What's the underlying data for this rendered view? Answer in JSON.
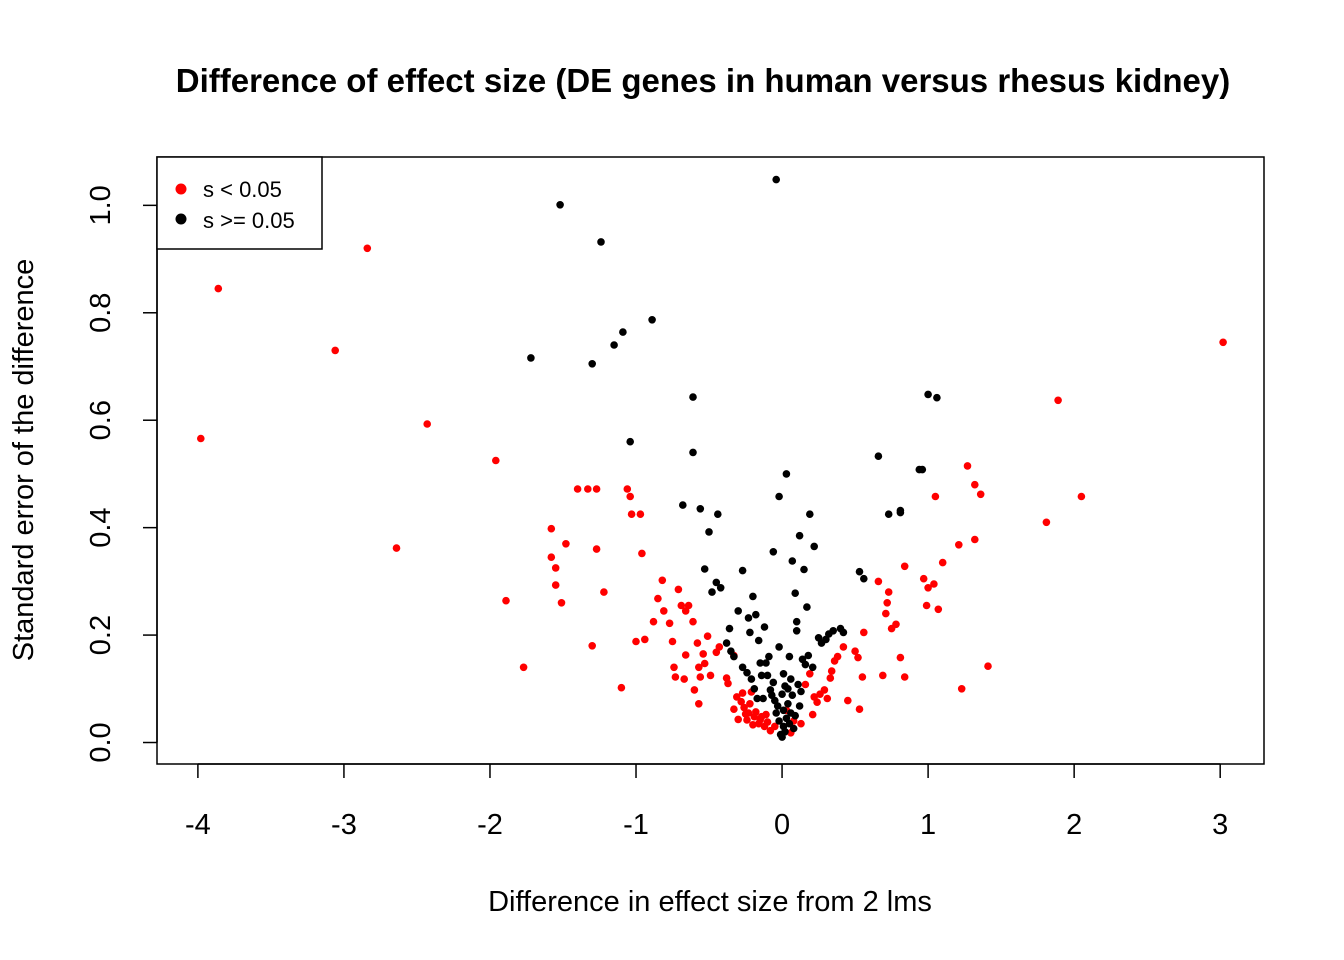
{
  "chart_data": {
    "type": "scatter",
    "title": "Difference of effect size (DE genes in human versus rhesus kidney)",
    "xlabel": "Difference in effect size from 2 lms",
    "ylabel": "Standard error of the difference",
    "xlim": [
      -4.28,
      3.3
    ],
    "ylim": [
      -0.04,
      1.09
    ],
    "x_ticks": [
      -4,
      -3,
      -2,
      -1,
      0,
      1,
      2,
      3
    ],
    "x_tick_labels": [
      "-4",
      "-3",
      "-2",
      "-1",
      "0",
      "1",
      "2",
      "3"
    ],
    "y_ticks": [
      0.0,
      0.2,
      0.4,
      0.6,
      0.8,
      1.0
    ],
    "y_tick_labels": [
      "0.0",
      "0.2",
      "0.4",
      "0.6",
      "0.8",
      "1.0"
    ],
    "grid": false,
    "legend": {
      "position": "top-left",
      "entries": [
        {
          "label": "s < 0.05",
          "color": "#ff0000"
        },
        {
          "label": "s >= 0.05",
          "color": "#000000"
        }
      ]
    },
    "series": [
      {
        "name": "s < 0.05",
        "color": "#ff0000",
        "points": [
          [
            -3.98,
            0.566
          ],
          [
            -3.86,
            0.845
          ],
          [
            -3.06,
            0.73
          ],
          [
            -2.84,
            0.92
          ],
          [
            -2.64,
            0.362
          ],
          [
            -2.43,
            0.593
          ],
          [
            -1.96,
            0.525
          ],
          [
            -1.89,
            0.264
          ],
          [
            -1.77,
            0.14
          ],
          [
            -1.58,
            0.398
          ],
          [
            -1.58,
            0.345
          ],
          [
            -1.55,
            0.325
          ],
          [
            -1.55,
            0.293
          ],
          [
            -1.51,
            0.26
          ],
          [
            -1.48,
            0.37
          ],
          [
            -1.4,
            0.472
          ],
          [
            -1.33,
            0.472
          ],
          [
            -1.3,
            0.18
          ],
          [
            -1.27,
            0.472
          ],
          [
            -1.27,
            0.36
          ],
          [
            -1.22,
            0.28
          ],
          [
            -1.1,
            0.102
          ],
          [
            -1.06,
            0.472
          ],
          [
            -1.04,
            0.458
          ],
          [
            -1.03,
            0.425
          ],
          [
            -1.0,
            0.188
          ],
          [
            -0.97,
            0.425
          ],
          [
            -0.96,
            0.352
          ],
          [
            -0.94,
            0.192
          ],
          [
            -0.88,
            0.225
          ],
          [
            -0.85,
            0.268
          ],
          [
            -0.82,
            0.302
          ],
          [
            -0.81,
            0.245
          ],
          [
            -0.77,
            0.222
          ],
          [
            -0.75,
            0.188
          ],
          [
            -0.74,
            0.14
          ],
          [
            -0.73,
            0.122
          ],
          [
            -0.71,
            0.285
          ],
          [
            -0.69,
            0.255
          ],
          [
            -0.67,
            0.118
          ],
          [
            -0.66,
            0.163
          ],
          [
            -0.66,
            0.245
          ],
          [
            -0.64,
            0.255
          ],
          [
            -0.61,
            0.225
          ],
          [
            -0.6,
            0.098
          ],
          [
            -0.58,
            0.185
          ],
          [
            -0.57,
            0.14
          ],
          [
            -0.57,
            0.072
          ],
          [
            -0.56,
            0.122
          ],
          [
            -0.54,
            0.165
          ],
          [
            -0.53,
            0.147
          ],
          [
            -0.51,
            0.198
          ],
          [
            -0.49,
            0.125
          ],
          [
            -0.45,
            0.168
          ],
          [
            -0.43,
            0.178
          ],
          [
            -0.38,
            0.12
          ],
          [
            -0.37,
            0.11
          ],
          [
            -0.33,
            0.162
          ],
          [
            -0.33,
            0.062
          ],
          [
            -0.31,
            0.085
          ],
          [
            -0.3,
            0.043
          ],
          [
            -0.28,
            0.076
          ],
          [
            -0.27,
            0.092
          ],
          [
            -0.26,
            0.065
          ],
          [
            -0.25,
            0.053
          ],
          [
            -0.24,
            0.042
          ],
          [
            -0.23,
            0.055
          ],
          [
            -0.22,
            0.072
          ],
          [
            -0.21,
            0.094
          ],
          [
            -0.2,
            0.033
          ],
          [
            -0.19,
            0.048
          ],
          [
            -0.18,
            0.057
          ],
          [
            -0.16,
            0.035
          ],
          [
            -0.15,
            0.042
          ],
          [
            -0.14,
            0.048
          ],
          [
            -0.12,
            0.03
          ],
          [
            -0.11,
            0.052
          ],
          [
            -0.1,
            0.038
          ],
          [
            -0.08,
            0.022
          ],
          [
            -0.05,
            0.03
          ],
          [
            0.03,
            0.06
          ],
          [
            0.06,
            0.018
          ],
          [
            0.08,
            0.04
          ],
          [
            0.13,
            0.035
          ],
          [
            0.16,
            0.108
          ],
          [
            0.19,
            0.128
          ],
          [
            0.21,
            0.052
          ],
          [
            0.22,
            0.085
          ],
          [
            0.24,
            0.075
          ],
          [
            0.26,
            0.09
          ],
          [
            0.29,
            0.098
          ],
          [
            0.31,
            0.082
          ],
          [
            0.33,
            0.12
          ],
          [
            0.34,
            0.133
          ],
          [
            0.36,
            0.152
          ],
          [
            0.38,
            0.16
          ],
          [
            0.42,
            0.178
          ],
          [
            0.45,
            0.078
          ],
          [
            0.5,
            0.17
          ],
          [
            0.52,
            0.158
          ],
          [
            0.53,
            0.062
          ],
          [
            0.55,
            0.122
          ],
          [
            0.56,
            0.205
          ],
          [
            0.66,
            0.3
          ],
          [
            0.69,
            0.125
          ],
          [
            0.71,
            0.24
          ],
          [
            0.72,
            0.26
          ],
          [
            0.73,
            0.28
          ],
          [
            0.75,
            0.212
          ],
          [
            0.78,
            0.22
          ],
          [
            0.81,
            0.158
          ],
          [
            0.84,
            0.122
          ],
          [
            0.84,
            0.328
          ],
          [
            0.97,
            0.305
          ],
          [
            0.99,
            0.255
          ],
          [
            1.0,
            0.288
          ],
          [
            1.04,
            0.295
          ],
          [
            1.05,
            0.458
          ],
          [
            1.07,
            0.248
          ],
          [
            1.1,
            0.335
          ],
          [
            1.21,
            0.368
          ],
          [
            1.23,
            0.1
          ],
          [
            1.27,
            0.515
          ],
          [
            1.32,
            0.48
          ],
          [
            1.32,
            0.378
          ],
          [
            1.36,
            0.462
          ],
          [
            1.41,
            0.142
          ],
          [
            1.81,
            0.41
          ],
          [
            1.89,
            0.637
          ],
          [
            2.05,
            0.458
          ],
          [
            3.02,
            0.745
          ]
        ]
      },
      {
        "name": "s >= 0.05",
        "color": "#000000",
        "points": [
          [
            -1.72,
            0.716
          ],
          [
            -1.52,
            1.001
          ],
          [
            -1.3,
            0.705
          ],
          [
            -1.24,
            0.932
          ],
          [
            -1.15,
            0.74
          ],
          [
            -1.09,
            0.764
          ],
          [
            -1.04,
            0.56
          ],
          [
            -0.89,
            0.787
          ],
          [
            -0.68,
            0.442
          ],
          [
            -0.61,
            0.643
          ],
          [
            -0.61,
            0.54
          ],
          [
            -0.56,
            0.435
          ],
          [
            -0.53,
            0.323
          ],
          [
            -0.5,
            0.392
          ],
          [
            -0.48,
            0.28
          ],
          [
            -0.45,
            0.298
          ],
          [
            -0.44,
            0.425
          ],
          [
            -0.42,
            0.288
          ],
          [
            -0.38,
            0.185
          ],
          [
            -0.36,
            0.212
          ],
          [
            -0.35,
            0.17
          ],
          [
            -0.33,
            0.16
          ],
          [
            -0.3,
            0.245
          ],
          [
            -0.27,
            0.32
          ],
          [
            -0.27,
            0.14
          ],
          [
            -0.24,
            0.13
          ],
          [
            -0.23,
            0.232
          ],
          [
            -0.22,
            0.205
          ],
          [
            -0.21,
            0.118
          ],
          [
            -0.2,
            0.272
          ],
          [
            -0.19,
            0.1
          ],
          [
            -0.18,
            0.238
          ],
          [
            -0.17,
            0.082
          ],
          [
            -0.16,
            0.19
          ],
          [
            -0.15,
            0.148
          ],
          [
            -0.14,
            0.125
          ],
          [
            -0.13,
            0.082
          ],
          [
            -0.12,
            0.215
          ],
          [
            -0.11,
            0.148
          ],
          [
            -0.1,
            0.125
          ],
          [
            -0.09,
            0.16
          ],
          [
            -0.08,
            0.098
          ],
          [
            -0.07,
            0.088
          ],
          [
            -0.06,
            0.355
          ],
          [
            -0.06,
            0.112
          ],
          [
            -0.05,
            0.078
          ],
          [
            -0.04,
            0.055
          ],
          [
            -0.04,
            1.048
          ],
          [
            -0.03,
            0.068
          ],
          [
            -0.02,
            0.458
          ],
          [
            -0.02,
            0.178
          ],
          [
            -0.02,
            0.04
          ],
          [
            -0.01,
            0.015
          ],
          [
            0.0,
            0.01
          ],
          [
            0.0,
            0.09
          ],
          [
            0.01,
            0.128
          ],
          [
            0.01,
            0.06
          ],
          [
            0.01,
            0.03
          ],
          [
            0.02,
            0.02
          ],
          [
            0.02,
            0.105
          ],
          [
            0.03,
            0.5
          ],
          [
            0.03,
            0.045
          ],
          [
            0.04,
            0.072
          ],
          [
            0.04,
            0.1
          ],
          [
            0.05,
            0.16
          ],
          [
            0.05,
            0.035
          ],
          [
            0.06,
            0.055
          ],
          [
            0.06,
            0.118
          ],
          [
            0.07,
            0.088
          ],
          [
            0.07,
            0.338
          ],
          [
            0.08,
            0.026
          ],
          [
            0.09,
            0.05
          ],
          [
            0.09,
            0.278
          ],
          [
            0.1,
            0.225
          ],
          [
            0.1,
            0.208
          ],
          [
            0.11,
            0.108
          ],
          [
            0.12,
            0.385
          ],
          [
            0.12,
            0.068
          ],
          [
            0.13,
            0.095
          ],
          [
            0.14,
            0.155
          ],
          [
            0.15,
            0.322
          ],
          [
            0.16,
            0.145
          ],
          [
            0.17,
            0.252
          ],
          [
            0.18,
            0.162
          ],
          [
            0.19,
            0.425
          ],
          [
            0.21,
            0.14
          ],
          [
            0.22,
            0.365
          ],
          [
            0.25,
            0.195
          ],
          [
            0.27,
            0.185
          ],
          [
            0.3,
            0.192
          ],
          [
            0.32,
            0.202
          ],
          [
            0.35,
            0.208
          ],
          [
            0.4,
            0.212
          ],
          [
            0.42,
            0.205
          ],
          [
            0.53,
            0.318
          ],
          [
            0.56,
            0.305
          ],
          [
            0.66,
            0.533
          ],
          [
            0.73,
            0.425
          ],
          [
            0.81,
            0.428
          ],
          [
            0.81,
            0.432
          ],
          [
            0.94,
            0.508
          ],
          [
            0.96,
            0.508
          ],
          [
            1.0,
            0.648
          ],
          [
            1.06,
            0.642
          ]
        ]
      }
    ]
  }
}
